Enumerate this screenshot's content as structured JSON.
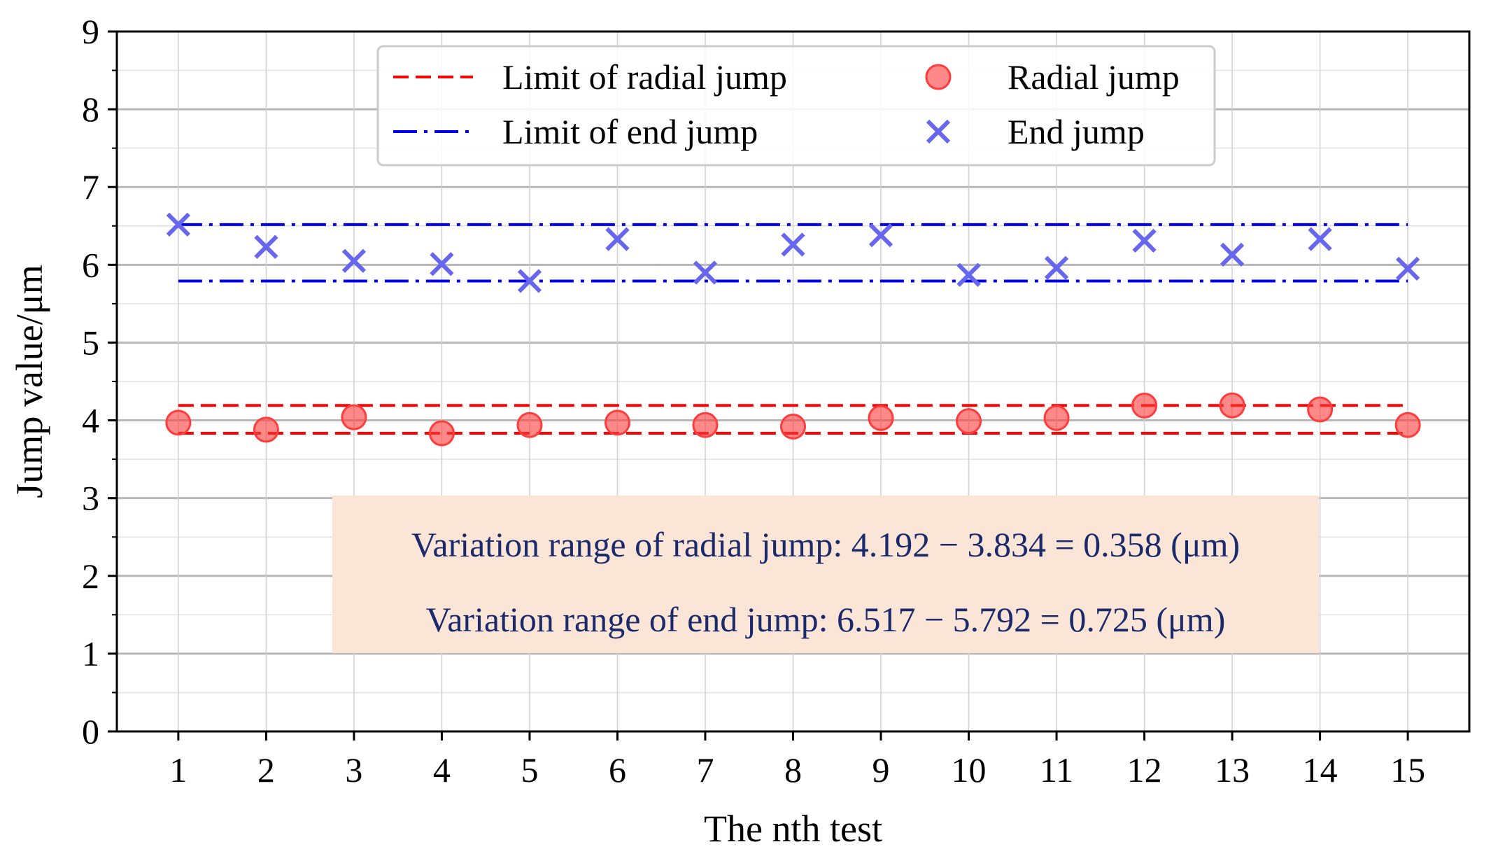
{
  "chart_data": {
    "type": "scatter",
    "title": "",
    "xlabel": "The nth test",
    "ylabel": "Jump value/μm",
    "x": [
      1,
      2,
      3,
      4,
      5,
      6,
      7,
      8,
      9,
      10,
      11,
      12,
      13,
      14,
      15
    ],
    "xlim": [
      0.3,
      15.7
    ],
    "ylim": [
      0,
      9
    ],
    "x_ticks": [
      "1",
      "2",
      "3",
      "4",
      "5",
      "6",
      "7",
      "8",
      "9",
      "10",
      "11",
      "12",
      "13",
      "14",
      "15"
    ],
    "y_ticks": [
      "0",
      "1",
      "2",
      "3",
      "4",
      "5",
      "6",
      "7",
      "8",
      "9"
    ],
    "grid": true,
    "series": [
      {
        "name": "Radial jump",
        "marker": "circle",
        "color": "#ff3b3b",
        "values": [
          3.97,
          3.88,
          4.04,
          3.834,
          3.94,
          3.97,
          3.94,
          3.92,
          4.03,
          3.99,
          4.03,
          4.19,
          4.192,
          4.14,
          3.94
        ]
      },
      {
        "name": "End jump",
        "marker": "x",
        "color": "#6666ee",
        "values": [
          6.517,
          6.23,
          6.05,
          6.01,
          5.792,
          6.33,
          5.9,
          6.26,
          6.38,
          5.87,
          5.96,
          6.31,
          6.13,
          6.33,
          5.95
        ]
      }
    ],
    "limit_lines": [
      {
        "name": "Limit of radial jump",
        "style": "dashed",
        "color": "#ff0000",
        "values": [
          4.192,
          3.834
        ]
      },
      {
        "name": "Limit of end jump",
        "style": "dashdot",
        "color": "#0000ee",
        "values": [
          6.517,
          5.792
        ]
      }
    ],
    "legend": {
      "placement": "top-center",
      "entries": [
        "Limit of radial jump",
        "Limit of end jump",
        "Radial jump",
        "End jump"
      ]
    },
    "annotation": {
      "line1": "Variation range of radial jump: 4.192 − 3.834 = 0.358 (μm)",
      "line2": "Variation range of end jump: 6.517 − 5.792 = 0.725 (μm)",
      "background": "#fbe5d6"
    }
  }
}
